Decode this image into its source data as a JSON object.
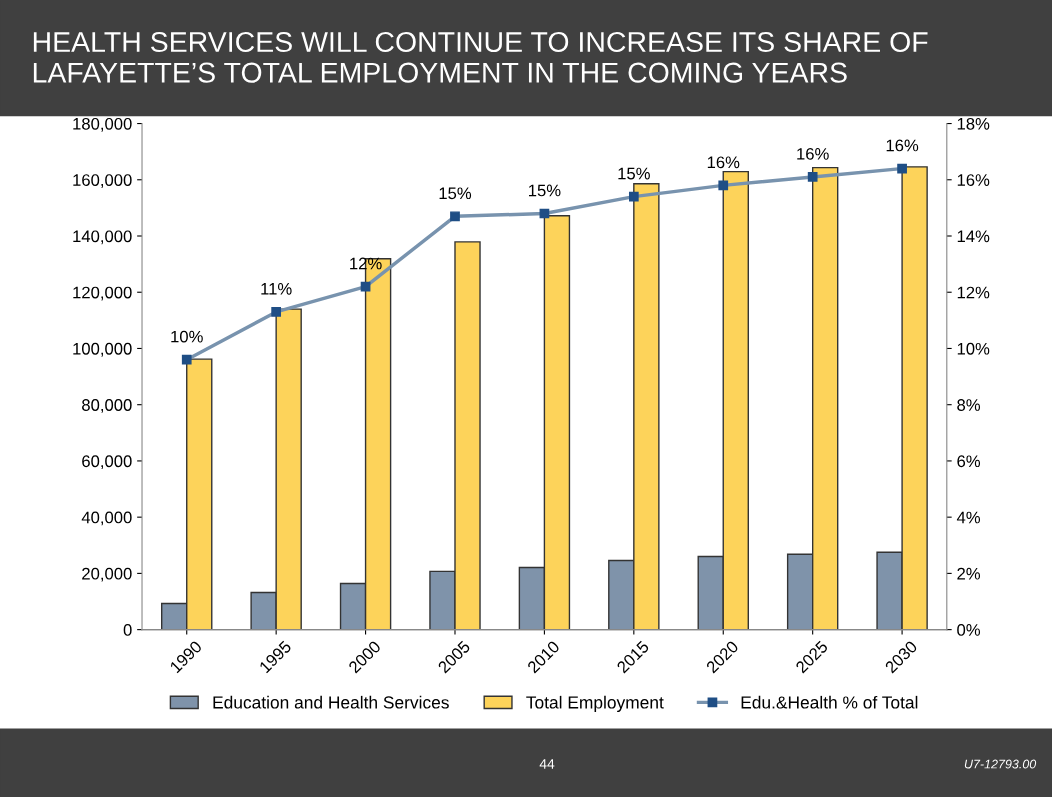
{
  "chart_data": {
    "type": "bar",
    "title": "HEALTH SERVICES WILL CONTINUE TO INCREASE ITS SHARE OF LAFAYETTE’S TOTAL EMPLOYMENT IN THE COMING YEARS",
    "categories": [
      "1990",
      "1995",
      "2000",
      "2005",
      "2010",
      "2015",
      "2020",
      "2025",
      "2030"
    ],
    "series": [
      {
        "name": "Education and Health Services",
        "color": "#7f93aa",
        "values": [
          9300,
          13200,
          16400,
          20700,
          22100,
          24600,
          26000,
          26800,
          27500
        ]
      },
      {
        "name": "Total Employment",
        "color": "#fdd35a",
        "values": [
          96200,
          114000,
          131900,
          137900,
          147200,
          158600,
          162900,
          164300,
          164600
        ]
      },
      {
        "name": "Edu.&Health % of Total",
        "type": "line",
        "axis": "y2",
        "color": "#7893ae",
        "marker": "square",
        "values": [
          9.6,
          11.3,
          12.2,
          14.7,
          14.8,
          15.4,
          15.8,
          16.1,
          16.4
        ],
        "value_labels": [
          "10%",
          "11%",
          "12%",
          "15%",
          "15%",
          "15%",
          "16%",
          "16%",
          "16%"
        ]
      }
    ],
    "ylim": [
      0,
      180000
    ],
    "yticks": [
      {
        "value": 0,
        "label": "0"
      },
      {
        "value": 20000,
        "label": "20,000"
      },
      {
        "value": 40000,
        "label": "40,000"
      },
      {
        "value": 60000,
        "label": "60,000"
      },
      {
        "value": 80000,
        "label": "80,000"
      },
      {
        "value": 100000,
        "label": "100,000"
      },
      {
        "value": 120000,
        "label": "120,000"
      },
      {
        "value": 140000,
        "label": "140,000"
      },
      {
        "value": 160000,
        "label": "160,000"
      },
      {
        "value": 180000,
        "label": "180,000"
      }
    ],
    "y2lim": [
      0,
      18
    ],
    "y2ticks": [
      {
        "value": 0,
        "label": "0%"
      },
      {
        "value": 2,
        "label": "2%"
      },
      {
        "value": 4,
        "label": "4%"
      },
      {
        "value": 6,
        "label": "6%"
      },
      {
        "value": 8,
        "label": "8%"
      },
      {
        "value": 10,
        "label": "10%"
      },
      {
        "value": 12,
        "label": "12%"
      },
      {
        "value": 14,
        "label": "14%"
      },
      {
        "value": 16,
        "label": "16%"
      },
      {
        "value": 18,
        "label": "18%"
      }
    ],
    "legend": "bottom",
    "grid": false,
    "annotations": [
      "44",
      "U7-12793.00"
    ]
  }
}
